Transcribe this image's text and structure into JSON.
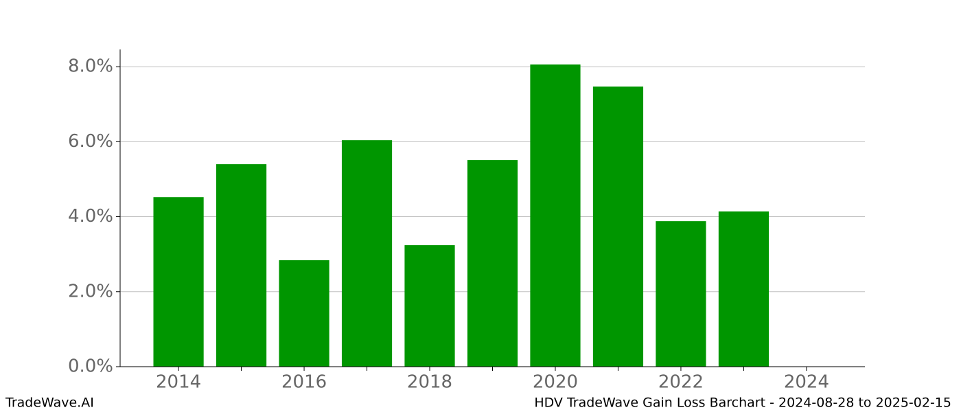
{
  "chart_data": {
    "type": "bar",
    "title": "HDV TradeWave Gain Loss Barchart - 2024-08-28 to 2025-02-15",
    "source": "TradeWave.AI",
    "x": [
      2014,
      2015,
      2016,
      2017,
      2018,
      2019,
      2020,
      2021,
      2022,
      2023
    ],
    "values": [
      4.52,
      5.4,
      2.84,
      6.04,
      3.24,
      5.51,
      8.06,
      7.47,
      3.88,
      4.14
    ],
    "color": "#009600",
    "xlim": [
      2013.07,
      2024.93
    ],
    "xticks": [
      2014,
      2016,
      2018,
      2020,
      2022,
      2024
    ],
    "xticks_minor": [
      2015,
      2017,
      2019,
      2021,
      2023
    ],
    "ylim": [
      0,
      8.46
    ],
    "yticks": [
      {
        "value": 0,
        "label": "0.0%"
      },
      {
        "value": 2,
        "label": "2.0%"
      },
      {
        "value": 4,
        "label": "4.0%"
      },
      {
        "value": 6,
        "label": "6.0%"
      },
      {
        "value": 8,
        "label": "8.0%"
      }
    ],
    "grid": true
  }
}
